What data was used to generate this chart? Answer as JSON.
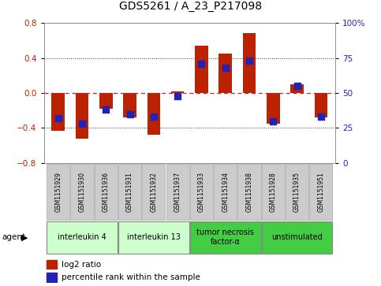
{
  "title": "GDS5261 / A_23_P217098",
  "samples": [
    "GSM1151929",
    "GSM1151930",
    "GSM1151936",
    "GSM1151931",
    "GSM1151932",
    "GSM1151937",
    "GSM1151933",
    "GSM1151934",
    "GSM1151938",
    "GSM1151928",
    "GSM1151935",
    "GSM1151951"
  ],
  "log2_ratio": [
    -0.43,
    -0.52,
    -0.18,
    -0.28,
    -0.48,
    0.02,
    0.54,
    0.45,
    0.68,
    -0.35,
    0.1,
    -0.28
  ],
  "percentile": [
    32,
    28,
    38,
    35,
    33,
    48,
    71,
    68,
    73,
    30,
    55,
    33
  ],
  "ylim": [
    -0.8,
    0.8
  ],
  "yticks_left": [
    -0.8,
    -0.4,
    0.0,
    0.4,
    0.8
  ],
  "yticks_right": [
    0,
    25,
    50,
    75,
    100
  ],
  "bar_color": "#BB2200",
  "dot_color": "#2222BB",
  "zero_line_color": "#CC2222",
  "dotted_line_color": "#333333",
  "agent_groups": [
    {
      "label": "interleukin 4",
      "start": 0,
      "end": 2,
      "color": "#CCFFCC"
    },
    {
      "label": "interleukin 13",
      "start": 3,
      "end": 5,
      "color": "#CCFFCC"
    },
    {
      "label": "tumor necrosis\nfactor-α",
      "start": 6,
      "end": 8,
      "color": "#44CC44"
    },
    {
      "label": "unstimulated",
      "start": 9,
      "end": 11,
      "color": "#44CC44"
    }
  ],
  "bar_width": 0.55,
  "dot_size": 28,
  "background_color": "#FFFFFF",
  "plot_bg_color": "#FFFFFF",
  "sample_box_color": "#CCCCCC",
  "sample_box_edge": "#AAAAAA"
}
